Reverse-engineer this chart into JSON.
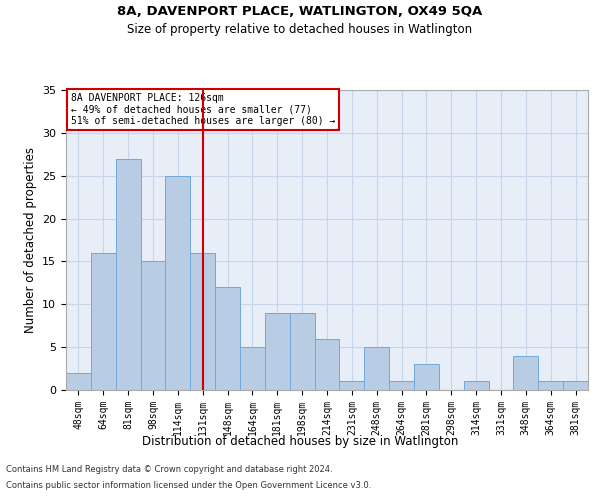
{
  "title1": "8A, DAVENPORT PLACE, WATLINGTON, OX49 5QA",
  "title2": "Size of property relative to detached houses in Watlington",
  "xlabel": "Distribution of detached houses by size in Watlington",
  "ylabel": "Number of detached properties",
  "categories": [
    "48sqm",
    "64sqm",
    "81sqm",
    "98sqm",
    "114sqm",
    "131sqm",
    "148sqm",
    "164sqm",
    "181sqm",
    "198sqm",
    "214sqm",
    "231sqm",
    "248sqm",
    "264sqm",
    "281sqm",
    "298sqm",
    "314sqm",
    "331sqm",
    "348sqm",
    "364sqm",
    "381sqm"
  ],
  "values": [
    2,
    16,
    27,
    15,
    25,
    16,
    12,
    5,
    9,
    9,
    6,
    1,
    5,
    1,
    3,
    0,
    1,
    0,
    4,
    1,
    1
  ],
  "bar_color": "#b8cce4",
  "bar_edgecolor": "#6fa8dc",
  "vline_x": 5.0,
  "vline_color": "#cc0000",
  "annotation_title": "8A DAVENPORT PLACE: 126sqm",
  "annotation_line1": "← 49% of detached houses are smaller (77)",
  "annotation_line2": "51% of semi-detached houses are larger (80) →",
  "annotation_box_color": "#cc0000",
  "ylim": [
    0,
    35
  ],
  "yticks": [
    0,
    5,
    10,
    15,
    20,
    25,
    30,
    35
  ],
  "grid_color": "#c8d4e8",
  "bg_color": "#e8eef8",
  "footnote1": "Contains HM Land Registry data © Crown copyright and database right 2024.",
  "footnote2": "Contains public sector information licensed under the Open Government Licence v3.0."
}
